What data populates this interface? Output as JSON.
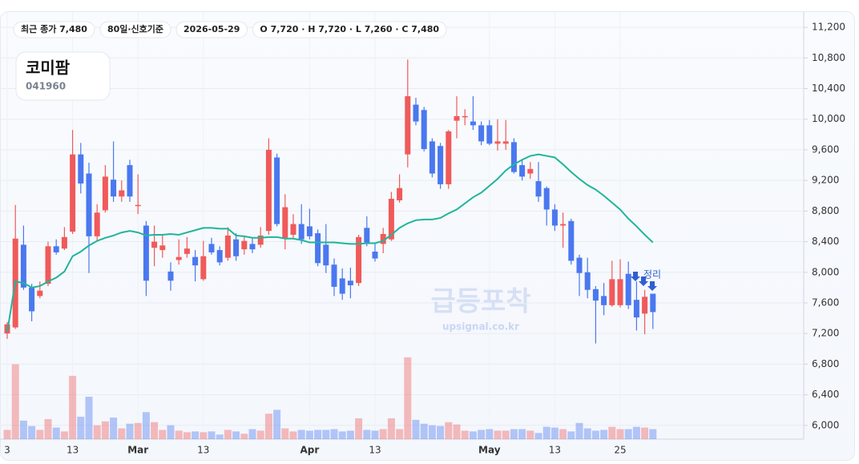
{
  "chart_data": {
    "type": "candlestick",
    "title": "코미팜",
    "code": "041960",
    "chips": [
      "최근 종가 7,480",
      "80일·신호기준",
      "2026-05-29",
      "O 7,720 · H 7,720 · L 7,260 · C 7,480"
    ],
    "watermark": "급등포착",
    "watermark_url": "upsignal.co.kr",
    "annotation": "정리",
    "categories": [
      "3",
      null,
      null,
      null,
      null,
      null,
      null,
      null,
      "13",
      null,
      null,
      null,
      null,
      null,
      null,
      null,
      "Mar",
      null,
      null,
      null,
      null,
      null,
      null,
      null,
      "13",
      null,
      null,
      null,
      null,
      null,
      null,
      null,
      null,
      null,
      null,
      null,
      null,
      "Apr",
      null,
      null,
      null,
      null,
      null,
      null,
      null,
      "13",
      null,
      null,
      null,
      null,
      null,
      null,
      null,
      null,
      null,
      null,
      null,
      null,
      null,
      "May",
      null,
      null,
      null,
      null,
      null,
      null,
      null,
      "13",
      null,
      null,
      null,
      null,
      null,
      null,
      null,
      "25",
      null,
      null,
      null,
      null
    ],
    "open": [
      7200,
      7280,
      8360,
      7800,
      7690,
      7850,
      8340,
      8310,
      8530,
      9540,
      9290,
      8470,
      8810,
      9210,
      8990,
      9400,
      8870,
      8610,
      8320,
      8290,
      8010,
      8160,
      8240,
      8200,
      7910,
      8370,
      8290,
      8190,
      8430,
      8300,
      8370,
      8360,
      8540,
      9500,
      8450,
      8490,
      8630,
      8600,
      8510,
      8360,
      8100,
      7920,
      7890,
      7860,
      8580,
      8270,
      8370,
      8430,
      8940,
      9540,
      10190,
      10120,
      9710,
      9650,
      9150,
      9980,
      10030,
      9970,
      9920,
      9920,
      9680,
      9680,
      9700,
      9400,
      9290,
      9190,
      9100,
      8820,
      8610,
      8670,
      8190,
      8000,
      7780,
      7690,
      7570,
      7570,
      7980,
      7640,
      7460,
      7720
    ],
    "high": [
      7350,
      8880,
      8610,
      7850,
      7880,
      8400,
      8430,
      8590,
      9860,
      9690,
      9430,
      8890,
      9400,
      9710,
      9200,
      9470,
      9280,
      8670,
      8610,
      8500,
      8130,
      8430,
      8460,
      8290,
      8410,
      8450,
      8340,
      8590,
      8510,
      8460,
      8450,
      8590,
      9750,
      9550,
      9020,
      8760,
      8890,
      8830,
      8560,
      8630,
      8180,
      8050,
      8060,
      8490,
      8730,
      8370,
      8580,
      9050,
      9280,
      10780,
      10280,
      10160,
      9750,
      9690,
      9860,
      10300,
      10130,
      10300,
      9970,
      9990,
      10000,
      9990,
      9750,
      9470,
      9440,
      9440,
      9120,
      8890,
      8780,
      8700,
      8230,
      8190,
      7820,
      7860,
      8150,
      8170,
      8140,
      7880,
      7770,
      7720
    ],
    "low": [
      7130,
      7260,
      7770,
      7360,
      7660,
      7820,
      8230,
      8290,
      8500,
      9030,
      7990,
      8410,
      8780,
      8920,
      8920,
      8920,
      8760,
      7690,
      8080,
      8190,
      7760,
      8100,
      8190,
      7880,
      7890,
      8230,
      8090,
      8150,
      8150,
      8230,
      8250,
      8320,
      8490,
      8600,
      8300,
      8430,
      8370,
      8430,
      8080,
      7990,
      7690,
      7640,
      7660,
      7820,
      8340,
      8140,
      8250,
      8410,
      8910,
      9370,
      9920,
      9580,
      9240,
      9090,
      9090,
      9750,
      9920,
      9860,
      9660,
      9660,
      9590,
      9600,
      9290,
      9200,
      9220,
      8920,
      8610,
      8540,
      8320,
      8100,
      7690,
      7660,
      7070,
      7440,
      7550,
      7540,
      7520,
      7240,
      7190,
      7260
    ],
    "close": [
      7320,
      8440,
      7800,
      7490,
      7760,
      8340,
      8260,
      8460,
      9540,
      9160,
      8470,
      8780,
      9250,
      8990,
      9070,
      8990,
      8880,
      7890,
      8400,
      8350,
      7890,
      8200,
      8310,
      8090,
      8210,
      8260,
      8130,
      8480,
      8210,
      8410,
      8300,
      8480,
      9600,
      8630,
      8850,
      8630,
      8430,
      8470,
      8120,
      8090,
      7810,
      7720,
      7830,
      8460,
      8390,
      8180,
      8500,
      8960,
      9100,
      10300,
      9970,
      9610,
      9290,
      9150,
      9840,
      10040,
      10040,
      9920,
      9710,
      9680,
      9710,
      9710,
      9310,
      9250,
      9350,
      8990,
      8820,
      8610,
      8630,
      8150,
      7990,
      7770,
      7630,
      7570,
      7910,
      7910,
      7570,
      7410,
      7680,
      7480
    ],
    "moving_average": {
      "color": "#20b59a",
      "values": [
        7220,
        7880,
        7860,
        7800,
        7820,
        7880,
        7930,
        8010,
        8210,
        8270,
        8350,
        8410,
        8450,
        8480,
        8520,
        8540,
        8520,
        8480,
        8490,
        8490,
        8500,
        8490,
        8520,
        8550,
        8580,
        8580,
        8570,
        8570,
        8480,
        8470,
        8450,
        8450,
        8460,
        8460,
        8440,
        8440,
        8420,
        8390,
        8390,
        8390,
        8390,
        8380,
        8370,
        8370,
        8380,
        8380,
        8410,
        8490,
        8580,
        8640,
        8680,
        8690,
        8690,
        8710,
        8770,
        8820,
        8900,
        8980,
        9040,
        9130,
        9220,
        9330,
        9410,
        9470,
        9520,
        9540,
        9520,
        9500,
        9410,
        9310,
        9220,
        9140,
        9080,
        9000,
        8910,
        8820,
        8700,
        8600,
        8490,
        8390
      ]
    },
    "volume": [
      12,
      97,
      24,
      17,
      12,
      26,
      15,
      10,
      82,
      29,
      55,
      18,
      23,
      28,
      14,
      20,
      21,
      35,
      22,
      12,
      18,
      11,
      9,
      10,
      9,
      10,
      6,
      12,
      10,
      7,
      13,
      11,
      33,
      38,
      14,
      10,
      12,
      11,
      12,
      12,
      13,
      10,
      11,
      27,
      12,
      11,
      13,
      27,
      13,
      106,
      25,
      20,
      18,
      17,
      22,
      19,
      11,
      10,
      12,
      13,
      11,
      11,
      13,
      13,
      11,
      8,
      16,
      15,
      13,
      10,
      21,
      14,
      11,
      12,
      16,
      13,
      13,
      16,
      15,
      13
    ],
    "vlim": [
      0,
      110
    ],
    "up_color": "#f05a5a",
    "down_color": "#4a78ef",
    "ylim": [
      5820,
      11400
    ],
    "yticks": [
      {
        "value": 6000,
        "label": "6,000"
      },
      {
        "value": 6400,
        "label": "6,400"
      },
      {
        "value": 6800,
        "label": "6,800"
      },
      {
        "value": 7200,
        "label": "7,200"
      },
      {
        "value": 7600,
        "label": "7,600"
      },
      {
        "value": 8000,
        "label": "8,000"
      },
      {
        "value": 8400,
        "label": "8,400"
      },
      {
        "value": 8800,
        "label": "8,800"
      },
      {
        "value": 9200,
        "label": "9,200"
      },
      {
        "value": 9600,
        "label": "9,600"
      },
      {
        "value": 10000,
        "label": "10,000"
      },
      {
        "value": 10400,
        "label": "10,400"
      },
      {
        "value": 10800,
        "label": "10,800"
      },
      {
        "value": 11200,
        "label": "11,200"
      }
    ],
    "grid": true
  }
}
